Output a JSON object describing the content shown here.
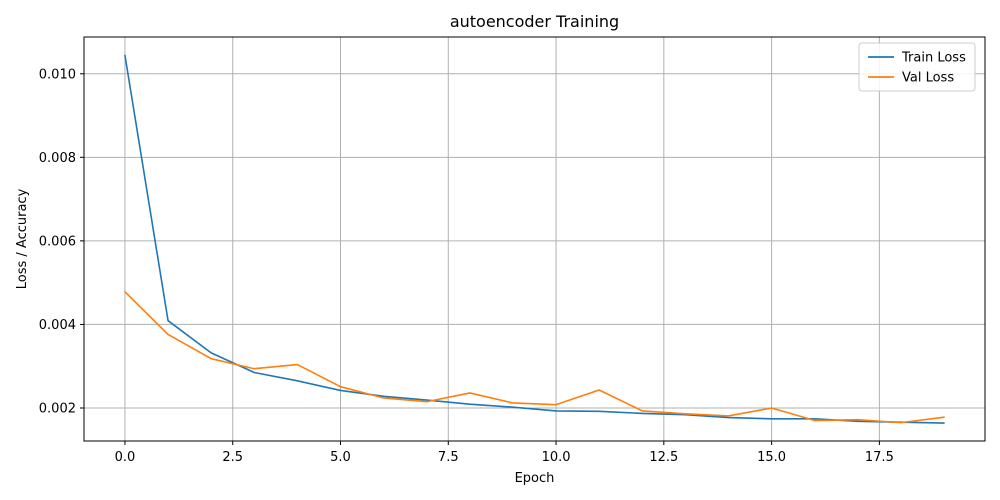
{
  "chart_data": {
    "type": "line",
    "title": "autoencoder Training",
    "xlabel": "Epoch",
    "ylabel": "Loss / Accuracy",
    "xlim": [
      -0.95,
      19.95
    ],
    "ylim": [
      0.00121,
      0.01088
    ],
    "x_ticks": [
      0.0,
      2.5,
      5.0,
      7.5,
      10.0,
      12.5,
      15.0,
      17.5
    ],
    "x_tick_labels": [
      "0.0",
      "2.5",
      "5.0",
      "7.5",
      "10.0",
      "12.5",
      "15.0",
      "17.5"
    ],
    "y_ticks": [
      0.002,
      0.004,
      0.006,
      0.008,
      0.01
    ],
    "y_tick_labels": [
      "0.002",
      "0.004",
      "0.006",
      "0.008",
      "0.010"
    ],
    "grid": true,
    "legend_position": "top-right",
    "x": [
      0,
      1,
      2,
      3,
      4,
      5,
      6,
      7,
      8,
      9,
      10,
      11,
      12,
      13,
      14,
      15,
      16,
      17,
      18,
      19
    ],
    "series": [
      {
        "name": "Train Loss",
        "color": "#1f77b4",
        "values": [
          0.01044,
          0.00409,
          0.00332,
          0.00285,
          0.00265,
          0.00242,
          0.00228,
          0.00219,
          0.00209,
          0.00202,
          0.00193,
          0.00192,
          0.00187,
          0.00184,
          0.00177,
          0.00174,
          0.00174,
          0.00168,
          0.00166,
          0.00164
        ]
      },
      {
        "name": "Val Loss",
        "color": "#ff7f0e",
        "values": [
          0.00478,
          0.00376,
          0.00318,
          0.00294,
          0.00304,
          0.00251,
          0.00224,
          0.00215,
          0.00236,
          0.00212,
          0.00208,
          0.00243,
          0.00193,
          0.00186,
          0.00181,
          0.002,
          0.0017,
          0.00172,
          0.00165,
          0.00178
        ]
      }
    ]
  }
}
